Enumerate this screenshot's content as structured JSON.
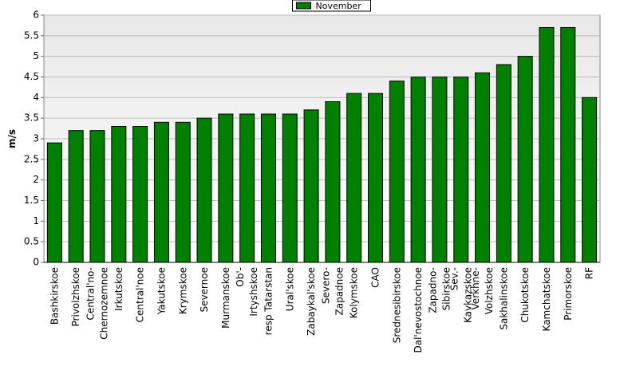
{
  "chart_data": {
    "type": "bar",
    "categories": [
      "Bashkirskoe",
      "Privolzhskoe",
      "Central'no-\nChernozemnoe",
      "Irkutskoe",
      "Central'noe",
      "Yakutskoe",
      "Krymskoe",
      "Severnoe",
      "Murmanskoe",
      "Ob'-\nIrtyshskoe",
      "resp Tatarstan",
      "Ural'skoe",
      "Zabaykal'skoe",
      "Severo-\nZapadnoe",
      "Kolymskoe",
      "CAO",
      "Srednesibirskoe",
      "Dal'nevostochnoe",
      "Zapadno-\nSibirskoe",
      "Sev.-\nKavkazskoe",
      "Verkhne-\nVolzhskoe",
      "Sakhalinskoe",
      "Chukotskoe",
      "Kamchatskoe",
      "Primorskoe",
      "RF"
    ],
    "series": [
      {
        "name": "November",
        "color": "#008000",
        "values": [
          2.9,
          3.2,
          3.2,
          3.3,
          3.3,
          3.4,
          3.4,
          3.5,
          3.6,
          3.6,
          3.6,
          3.6,
          3.7,
          3.9,
          4.1,
          4.1,
          4.4,
          4.5,
          4.5,
          4.5,
          4.6,
          4.8,
          5.0,
          5.7,
          5.7,
          4.0
        ]
      }
    ],
    "y_label": "m/s",
    "ylim": [
      0,
      6
    ],
    "yticks": [
      0,
      0.5,
      1,
      1.5,
      2,
      2.5,
      3,
      3.5,
      4,
      4.5,
      5,
      5.5,
      6
    ],
    "grid": true,
    "legend": "top"
  }
}
